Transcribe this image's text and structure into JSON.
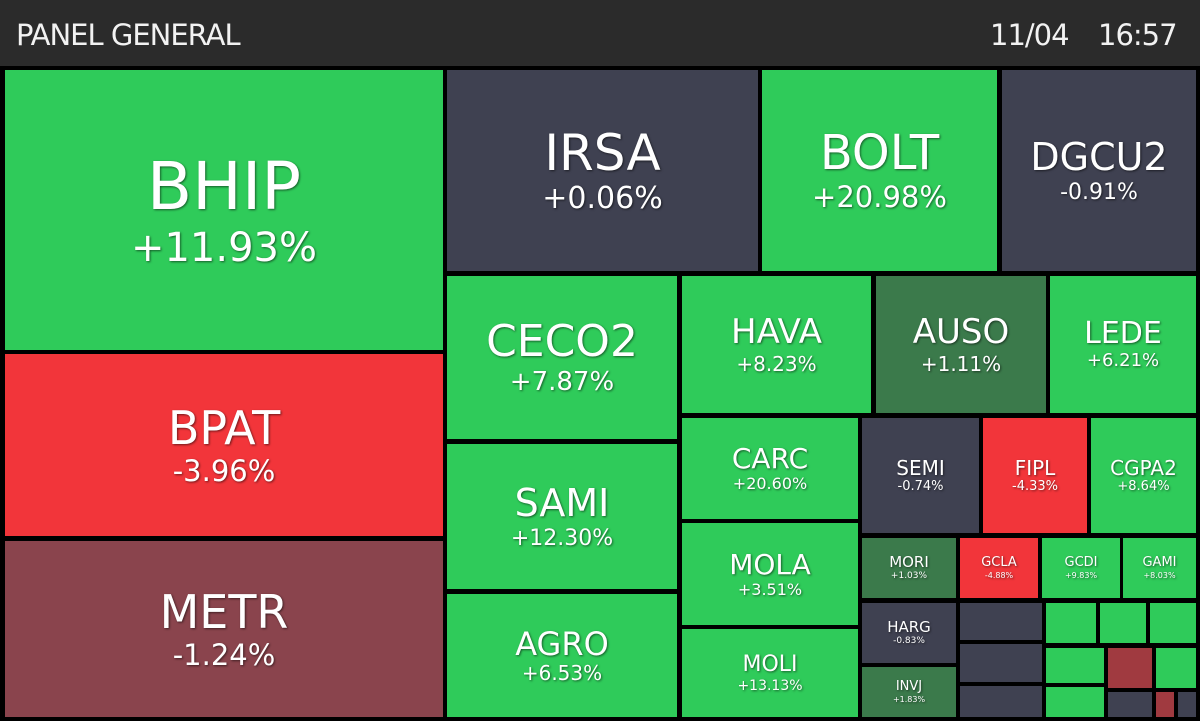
{
  "header": {
    "title": "PANEL GENERAL",
    "date": "11/04",
    "time": "16:57"
  },
  "tiles": [
    {
      "ticker": "BHIP",
      "change": "+11.93%",
      "color": "#2fcb5a"
    },
    {
      "ticker": "BPAT",
      "change": "-3.96%",
      "color": "#f2353a"
    },
    {
      "ticker": "METR",
      "change": "-1.24%",
      "color": "#8a444d"
    },
    {
      "ticker": "IRSA",
      "change": "+0.06%",
      "color": "#3f4151"
    },
    {
      "ticker": "BOLT",
      "change": "+20.98%",
      "color": "#2fcb5a"
    },
    {
      "ticker": "DGCU2",
      "change": "-0.91%",
      "color": "#3f4151"
    },
    {
      "ticker": "CECO2",
      "change": "+7.87%",
      "color": "#2fcb5a"
    },
    {
      "ticker": "SAMI",
      "change": "+12.30%",
      "color": "#2fcb5a"
    },
    {
      "ticker": "AGRO",
      "change": "+6.53%",
      "color": "#2fcb5a"
    },
    {
      "ticker": "HAVA",
      "change": "+8.23%",
      "color": "#2fcb5a"
    },
    {
      "ticker": "AUSO",
      "change": "+1.11%",
      "color": "#3b7a4b"
    },
    {
      "ticker": "LEDE",
      "change": "+6.21%",
      "color": "#2fcb5a"
    },
    {
      "ticker": "CARC",
      "change": "+20.60%",
      "color": "#2fcb5a"
    },
    {
      "ticker": "MOLA",
      "change": "+3.51%",
      "color": "#2fcb5a"
    },
    {
      "ticker": "MOLI",
      "change": "+13.13%",
      "color": "#2fcb5a"
    },
    {
      "ticker": "SEMI",
      "change": "-0.74%",
      "color": "#3f4151"
    },
    {
      "ticker": "FIPL",
      "change": "-4.33%",
      "color": "#f2353a"
    },
    {
      "ticker": "CGPA2",
      "change": "+8.64%",
      "color": "#2fcb5a"
    },
    {
      "ticker": "MORI",
      "change": "+1.03%",
      "color": "#3b7a4b"
    },
    {
      "ticker": "GCLA",
      "change": "-4.88%",
      "color": "#f2353a"
    },
    {
      "ticker": "GCDI",
      "change": "+9.83%",
      "color": "#2fcb5a"
    },
    {
      "ticker": "GAMI",
      "change": "+8.03%",
      "color": "#2fcb5a"
    },
    {
      "ticker": "HARG",
      "change": "-0.83%",
      "color": "#3f4151"
    },
    {
      "ticker": "INVJ",
      "change": "+1.83%",
      "color": "#3b7a4b"
    }
  ]
}
